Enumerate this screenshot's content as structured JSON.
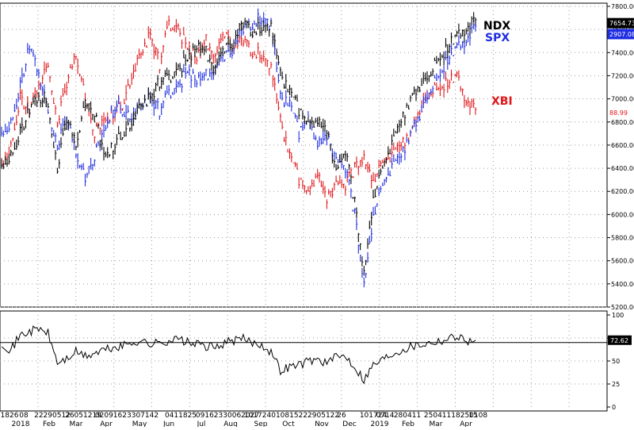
{
  "colors": {
    "ndx": "#000000",
    "spx": "#1f2ee0",
    "xbi": "#e0161b",
    "grid": "#9a9a9a",
    "osc": "#000000"
  },
  "labels": {
    "ndx": "NDX",
    "spx": "SPX",
    "xbi": "XBI"
  },
  "value_boxes": {
    "ndx": "7654.73",
    "spx": "2907.08",
    "xbi": "88.99",
    "osc": "72.62"
  },
  "chart_data": [
    {
      "type": "line",
      "ylim": [
        5200,
        7800
      ],
      "yticks": [
        "5200.00",
        "5400.00",
        "5600.00",
        "5800.00",
        "6000.00",
        "6200.00",
        "6400.00",
        "6600.00",
        "6800.00",
        "7000.00",
        "7200.00",
        "7400.00",
        "7600.00",
        "7800.00"
      ],
      "x_labels_row1": [
        "1826",
        "08",
        "22290512",
        "26051219",
        "02091623307142",
        "0411825",
        "09162330062027",
        "101724010815222905122",
        "26",
        "101724",
        "0714",
        "280411",
        "25041118250108",
        "15"
      ],
      "x_labels_row2": [
        "2018",
        "Feb",
        "Mar",
        "Apr",
        "May",
        "Jun",
        "Jul",
        "Aug",
        "Sep",
        "Oct",
        "Nov",
        "Dec",
        "2019",
        "Feb",
        "Mar",
        "Apr"
      ],
      "series": [
        {
          "name": "NDX",
          "key": "ndx",
          "values": [
            6440,
            6520,
            6700,
            6900,
            7000,
            6950,
            6400,
            6800,
            6620,
            6950,
            6880,
            6500,
            6600,
            6700,
            6800,
            6960,
            7000,
            7150,
            7180,
            7250,
            7350,
            7450,
            7400,
            7300,
            7420,
            7500,
            7650,
            7580,
            7620,
            7660,
            7200,
            7050,
            6900,
            6750,
            6800,
            6700,
            6400,
            6550,
            6100,
            5500,
            6150,
            6400,
            6600,
            6800,
            7000,
            7100,
            7200,
            7350,
            7450,
            7550,
            7620,
            7654.73
          ]
        },
        {
          "name": "SPX",
          "key": "spx",
          "values": [
            6720,
            6800,
            7100,
            7450,
            7200,
            6900,
            6600,
            6800,
            6550,
            6300,
            6500,
            6700,
            6950,
            6900,
            6850,
            6950,
            7000,
            6900,
            7050,
            7100,
            7250,
            7150,
            7200,
            7300,
            7350,
            7450,
            7600,
            7650,
            7700,
            7680,
            7000,
            6950,
            6700,
            6800,
            6600,
            6650,
            6500,
            6400,
            6000,
            5400,
            6000,
            6250,
            6400,
            6500,
            6700,
            6850,
            7050,
            7200,
            7350,
            7450,
            7520,
            7600
          ]
        },
        {
          "name": "XBI",
          "key": "xbi",
          "values": [
            6450,
            6600,
            7000,
            6900,
            7100,
            7300,
            6800,
            7100,
            7400,
            7000,
            6700,
            6800,
            6900,
            6950,
            7200,
            7400,
            7550,
            7300,
            7650,
            7600,
            7450,
            7350,
            7500,
            7400,
            7550,
            7450,
            7500,
            7400,
            7380,
            7300,
            6800,
            6500,
            6300,
            6150,
            6350,
            6100,
            6300,
            6250,
            6400,
            6500,
            6300,
            6450,
            6500,
            6600,
            6700,
            6900,
            7050,
            7100,
            7150,
            7200,
            7000,
            6880
          ]
        }
      ]
    },
    {
      "type": "line",
      "ylim": [
        0,
        100
      ],
      "yticks": [
        "0",
        "25",
        "50",
        "75",
        "100"
      ],
      "series": [
        {
          "name": "",
          "key": "osc",
          "values": [
            70,
            62,
            78,
            82,
            85,
            80,
            48,
            52,
            60,
            55,
            58,
            62,
            64,
            66,
            70,
            72,
            68,
            70,
            72,
            74,
            70,
            68,
            66,
            64,
            70,
            72,
            74,
            70,
            68,
            60,
            40,
            44,
            46,
            50,
            52,
            48,
            54,
            56,
            44,
            30,
            46,
            52,
            58,
            62,
            66,
            68,
            70,
            72,
            74,
            78,
            72,
            72.62
          ]
        }
      ]
    }
  ]
}
